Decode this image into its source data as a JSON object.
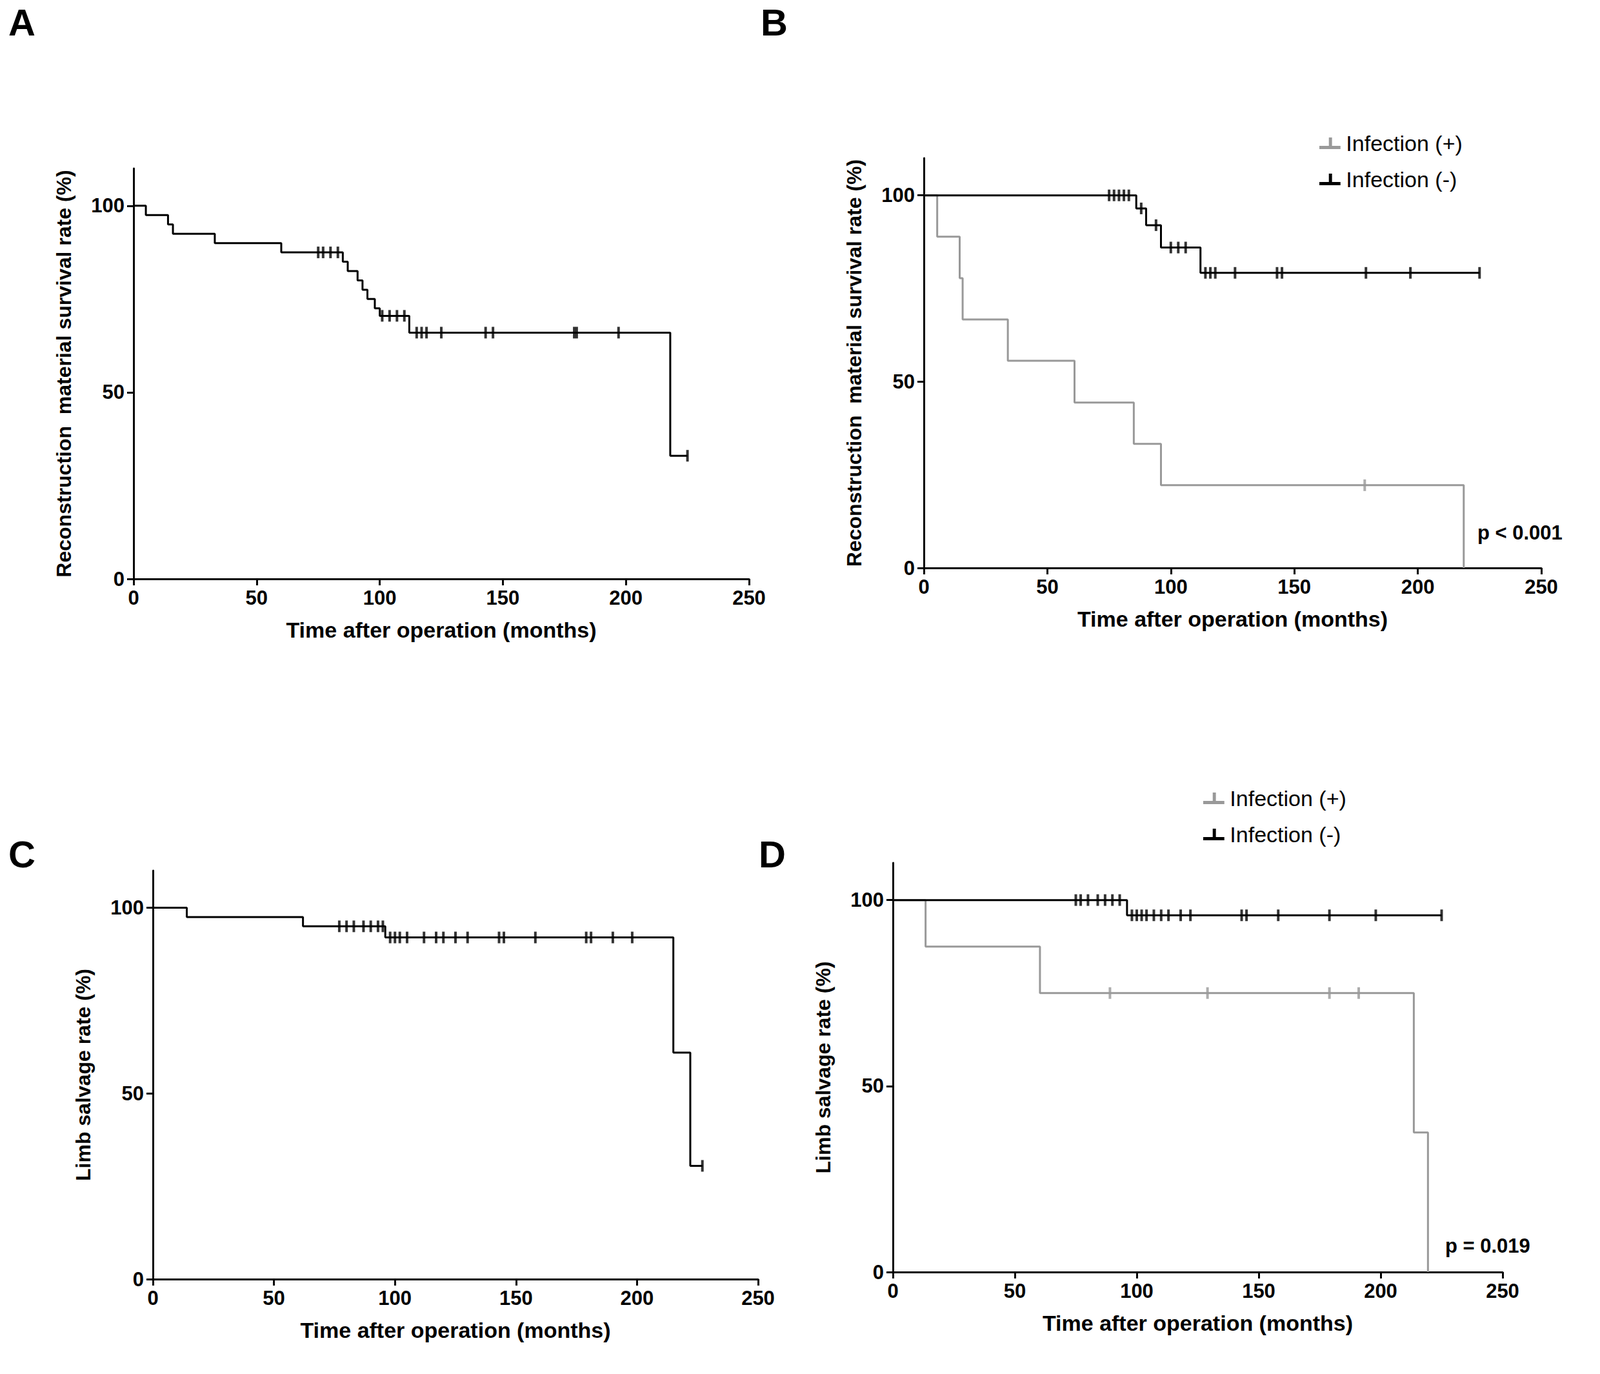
{
  "chart_data": [
    {
      "type": "step",
      "title": "A",
      "x_label": "Time after operation (months)",
      "y_label": "Reconstruction  material survival rate (%)",
      "xlim": [
        0,
        250
      ],
      "xticks": [
        0,
        50,
        100,
        150,
        200,
        250
      ],
      "ylim": [
        0,
        110
      ],
      "yticks": [
        0,
        50,
        100
      ],
      "grid": false,
      "marker": "tick",
      "series": [
        {
          "color": "#000000",
          "line_style": "solid",
          "x": [
            0,
            5,
            14,
            16,
            33,
            60,
            85,
            87,
            91,
            93,
            95,
            98,
            100,
            112,
            218,
            225
          ],
          "values": [
            100,
            97.5,
            95,
            92.5,
            90,
            87.5,
            85,
            82.5,
            80,
            77.5,
            75,
            72.5,
            70.5,
            66,
            33,
            33
          ],
          "censored_x": [
            75,
            77,
            80,
            83,
            101,
            104,
            107,
            110,
            115,
            117,
            119,
            125,
            143,
            146,
            179,
            180,
            197,
            225
          ],
          "censored_y": [
            87.5,
            87.5,
            87.5,
            87.5,
            70.5,
            70.5,
            70.5,
            70.5,
            66,
            66,
            66,
            66,
            66,
            66,
            66,
            66,
            66,
            33
          ]
        }
      ]
    },
    {
      "type": "step",
      "title": "B",
      "x_label": "Time after operation (months)",
      "y_label": "Reconstruction  material survival rate (%)",
      "xlim": [
        0,
        250
      ],
      "xticks": [
        0,
        50,
        100,
        150,
        200,
        250
      ],
      "ylim": [
        0,
        110
      ],
      "yticks": [
        0,
        50,
        100
      ],
      "grid": false,
      "marker": "tick",
      "legend": "top-right",
      "annotation": "p < 0.001",
      "series": [
        {
          "name": "Infection (+)",
          "color": "#999999",
          "line_style": "solid",
          "x": [
            0,
            5.4,
            14.5,
            15.7,
            34,
            61,
            85,
            96,
            218.6
          ],
          "values": [
            100,
            88.9,
            77.8,
            66.7,
            55.6,
            44.4,
            33.3,
            22.2,
            0
          ],
          "censored_x": [
            178.5
          ],
          "censored_y": [
            22.2
          ]
        },
        {
          "name": "Infection (-)",
          "color": "#000000",
          "line_style": "solid",
          "x": [
            0,
            86,
            90,
            96,
            112,
            225
          ],
          "values": [
            100,
            96.5,
            92,
            86,
            79.2,
            79.2
          ],
          "censored_x": [
            75,
            77,
            79,
            81,
            83,
            88,
            94,
            100,
            103,
            106,
            114,
            116,
            118,
            126,
            143,
            145,
            179,
            197,
            225
          ],
          "censored_y": [
            100,
            100,
            100,
            100,
            100,
            96.5,
            92,
            86,
            86,
            86,
            79.2,
            79.2,
            79.2,
            79.2,
            79.2,
            79.2,
            79.2,
            79.2,
            79.2
          ]
        }
      ]
    },
    {
      "type": "step",
      "title": "C",
      "x_label": "Time after operation (months)",
      "y_label": "Limb salvage rate (%)",
      "xlim": [
        0,
        250
      ],
      "xticks": [
        0,
        50,
        100,
        150,
        200,
        250
      ],
      "ylim": [
        0,
        110
      ],
      "yticks": [
        0,
        50,
        100
      ],
      "grid": false,
      "marker": "tick",
      "series": [
        {
          "color": "#000000",
          "line_style": "solid",
          "x": [
            0,
            14,
            62,
            96,
            215,
            222,
            227
          ],
          "values": [
            100,
            97.5,
            95,
            92,
            61,
            30.5,
            30.5
          ],
          "censored_x": [
            77,
            80,
            83,
            87,
            90,
            93,
            95,
            98,
            100,
            102,
            105,
            112,
            117,
            120,
            125,
            130,
            143,
            145,
            158,
            179,
            181,
            190,
            198,
            227
          ],
          "censored_y": [
            95,
            95,
            95,
            95,
            95,
            95,
            95,
            92,
            92,
            92,
            92,
            92,
            92,
            92,
            92,
            92,
            92,
            92,
            92,
            92,
            92,
            92,
            92,
            30.5
          ]
        }
      ]
    },
    {
      "type": "step",
      "title": "D",
      "x_label": "Time after operation (months)",
      "y_label": "Limb salvage rate (%)",
      "xlim": [
        0,
        250
      ],
      "xticks": [
        0,
        50,
        100,
        150,
        200,
        250
      ],
      "ylim": [
        0,
        110
      ],
      "yticks": [
        0,
        50,
        100
      ],
      "grid": false,
      "marker": "tick",
      "legend": "top-right",
      "annotation": "p = 0.019",
      "series": [
        {
          "name": "Infection (+)",
          "color": "#999999",
          "line_style": "solid",
          "x": [
            0,
            13.4,
            60.3,
            213.6,
            219.4
          ],
          "values": [
            100,
            87.5,
            75,
            37.5,
            0
          ],
          "censored_x": [
            89,
            129,
            179,
            191
          ],
          "censored_y": [
            75,
            75,
            75,
            75
          ]
        },
        {
          "name": "Infection (-)",
          "color": "#000000",
          "line_style": "solid",
          "x": [
            0,
            96,
            225
          ],
          "values": [
            100,
            95.9,
            95.9
          ],
          "censored_x": [
            75,
            77,
            80,
            84,
            87,
            90,
            93,
            98,
            100,
            102,
            104,
            107,
            110,
            113,
            118,
            122,
            143,
            145,
            158,
            179,
            198,
            225
          ],
          "censored_y": [
            100,
            100,
            100,
            100,
            100,
            100,
            100,
            95.9,
            95.9,
            95.9,
            95.9,
            95.9,
            95.9,
            95.9,
            95.9,
            95.9,
            95.9,
            95.9,
            95.9,
            95.9,
            95.9,
            95.9
          ]
        }
      ]
    }
  ]
}
